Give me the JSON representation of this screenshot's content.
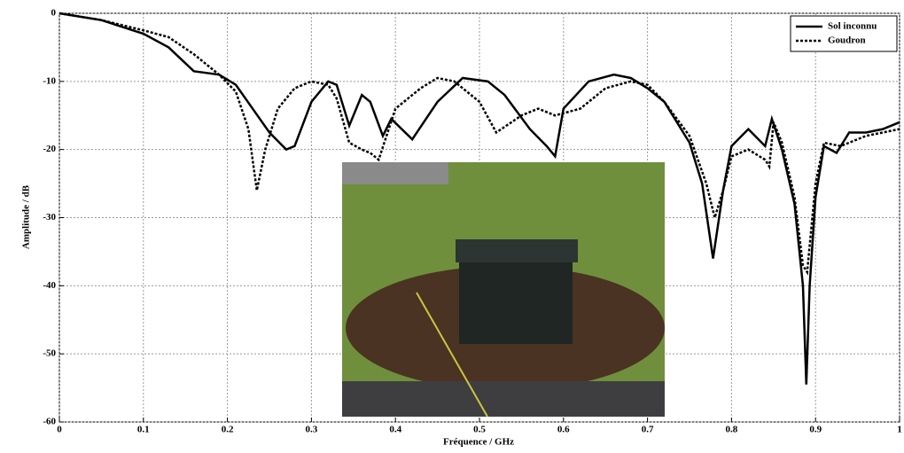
{
  "chart_data": {
    "type": "line",
    "xlabel": "Fréquence / GHz",
    "ylabel": "Amplitude / dB",
    "xlim": [
      0,
      1
    ],
    "ylim": [
      -60,
      0
    ],
    "xticks": [
      0,
      0.1,
      0.2,
      0.3,
      0.4,
      0.5,
      0.6,
      0.7,
      0.8,
      0.9,
      1
    ],
    "yticks": [
      -60,
      -50,
      -40,
      -30,
      -20,
      -10,
      0
    ],
    "grid": true,
    "legend": "upper right",
    "series": [
      {
        "name": "Sol inconnu",
        "color": "#000000",
        "style": "solid",
        "x": [
          0,
          0.05,
          0.1,
          0.13,
          0.16,
          0.19,
          0.21,
          0.23,
          0.25,
          0.27,
          0.28,
          0.3,
          0.32,
          0.33,
          0.345,
          0.36,
          0.37,
          0.385,
          0.395,
          0.42,
          0.45,
          0.48,
          0.51,
          0.53,
          0.56,
          0.58,
          0.59,
          0.6,
          0.63,
          0.66,
          0.68,
          0.7,
          0.72,
          0.75,
          0.765,
          0.778,
          0.79,
          0.8,
          0.82,
          0.84,
          0.848,
          0.86,
          0.875,
          0.885,
          0.889,
          0.893,
          0.9,
          0.91,
          0.925,
          0.94,
          0.96,
          0.98,
          1
        ],
        "values": [
          0,
          -1,
          -3,
          -5,
          -8.5,
          -9,
          -10.5,
          -14,
          -17.5,
          -20,
          -19.5,
          -13,
          -10,
          -10.5,
          -16.5,
          -12,
          -13,
          -18,
          -15.5,
          -18.5,
          -13,
          -9.5,
          -10,
          -12,
          -17,
          -19.5,
          -21,
          -14,
          -10,
          -9,
          -9.5,
          -11,
          -13,
          -19,
          -25,
          -36,
          -26,
          -19.5,
          -17,
          -19.5,
          -15.5,
          -20,
          -28,
          -40,
          -54.5,
          -40,
          -27,
          -19.5,
          -20.5,
          -17.5,
          -17.5,
          -17,
          -16
        ]
      },
      {
        "name": "Goudron",
        "color": "#000000",
        "style": "dotted",
        "x": [
          0,
          0.05,
          0.1,
          0.13,
          0.16,
          0.19,
          0.21,
          0.225,
          0.235,
          0.245,
          0.26,
          0.28,
          0.3,
          0.32,
          0.33,
          0.345,
          0.36,
          0.37,
          0.38,
          0.4,
          0.43,
          0.45,
          0.47,
          0.5,
          0.52,
          0.55,
          0.57,
          0.59,
          0.62,
          0.65,
          0.68,
          0.7,
          0.72,
          0.75,
          0.77,
          0.78,
          0.79,
          0.8,
          0.82,
          0.84,
          0.845,
          0.85,
          0.86,
          0.875,
          0.885,
          0.89,
          0.9,
          0.91,
          0.93,
          0.96,
          1
        ],
        "values": [
          0,
          -1,
          -2.5,
          -3.5,
          -6,
          -9,
          -11.5,
          -17,
          -26,
          -20,
          -14,
          -11,
          -10,
          -10.5,
          -12.5,
          -19,
          -20,
          -20.5,
          -21.5,
          -14,
          -11,
          -9.5,
          -10,
          -13,
          -17.5,
          -15,
          -14,
          -15,
          -14,
          -11,
          -10,
          -10.5,
          -13,
          -18,
          -25,
          -30,
          -26,
          -21,
          -20,
          -21.5,
          -22.5,
          -16,
          -19,
          -27,
          -37,
          -38,
          -25,
          -19,
          -19.5,
          -18,
          -17
        ]
      }
    ]
  }
}
